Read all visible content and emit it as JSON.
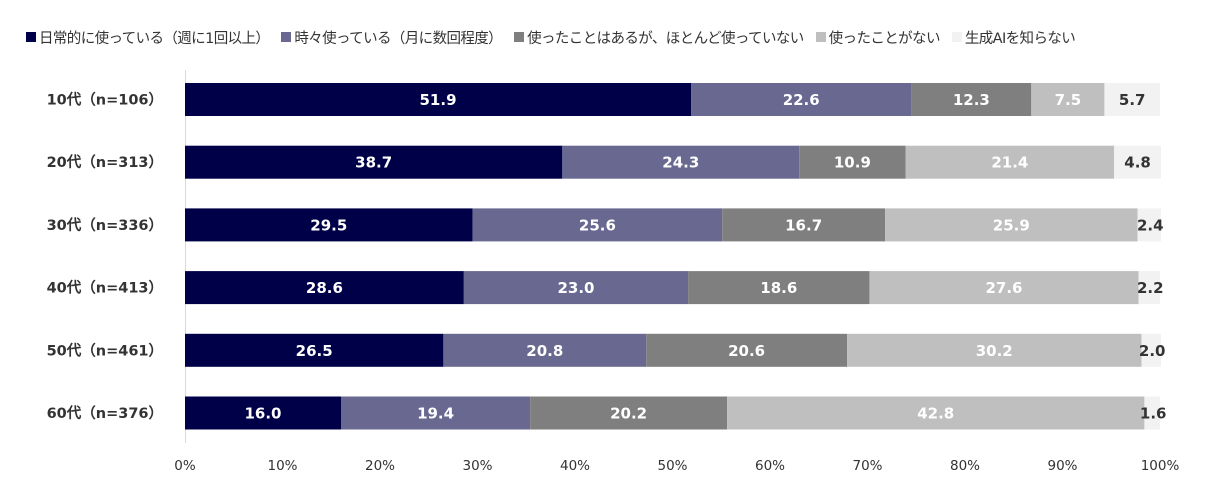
{
  "chart_data": {
    "type": "bar",
    "orientation": "horizontal",
    "stacked": true,
    "title": "",
    "xlabel": "",
    "ylabel": "",
    "xlim": [
      0,
      100
    ],
    "legend_position": "top",
    "grid": false,
    "categories": [
      "10代（n=106）",
      "20代（n=313）",
      "30代（n=336）",
      "40代（n=413）",
      "50代（n=461）",
      "60代（n=376）"
    ],
    "x_ticks": [
      "0%",
      "10%",
      "20%",
      "30%",
      "40%",
      "50%",
      "60%",
      "70%",
      "80%",
      "90%",
      "100%"
    ],
    "series": [
      {
        "name": "日常的に使っている（週に1回以上）",
        "color": "#000048",
        "label_color": "#ffffff",
        "values": [
          51.9,
          38.7,
          29.5,
          28.6,
          26.5,
          16.0
        ]
      },
      {
        "name": "時々使っている（月に数回程度）",
        "color": "#686891",
        "label_color": "#ffffff",
        "values": [
          22.6,
          24.3,
          25.6,
          23.0,
          20.8,
          19.4
        ]
      },
      {
        "name": "使ったことはあるが、ほとんど使っていない",
        "color": "#7f7f7f",
        "label_color": "#ffffff",
        "values": [
          12.3,
          10.9,
          16.7,
          18.6,
          20.6,
          20.2
        ]
      },
      {
        "name": "使ったことがない",
        "color": "#bfbfbf",
        "label_color": "#ffffff",
        "values": [
          7.5,
          21.4,
          25.9,
          27.6,
          30.2,
          42.8
        ]
      },
      {
        "name": "生成AIを知らない",
        "color": "#f2f2f2",
        "label_color": "#333333",
        "values": [
          5.7,
          4.8,
          2.4,
          2.2,
          2.0,
          1.6
        ]
      }
    ]
  }
}
